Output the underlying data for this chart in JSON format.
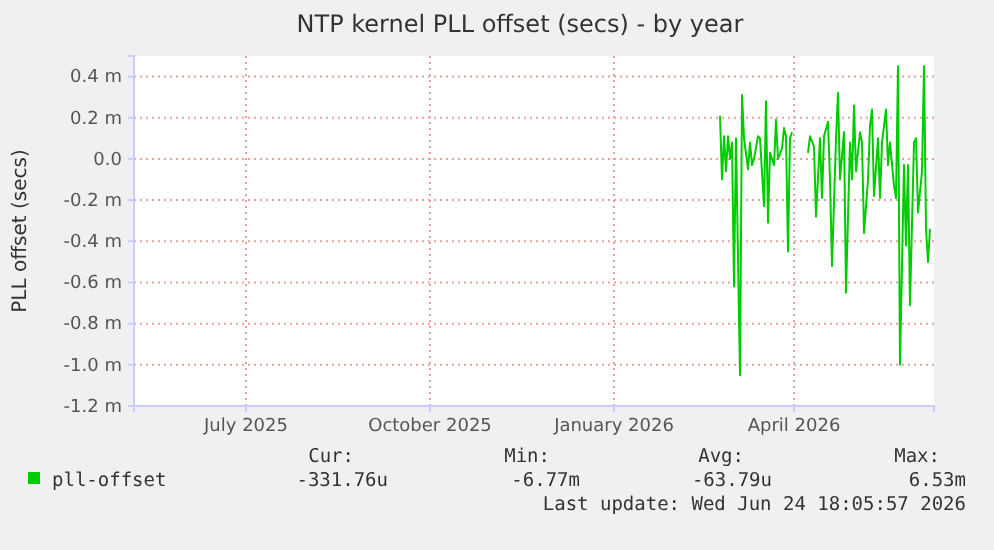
{
  "chart_data": {
    "type": "line",
    "title": "NTP kernel PLL offset (secs) - by year",
    "ylabel": "PLL offset (secs)",
    "xlim": [
      "2025-05-20",
      "2026-06-24"
    ],
    "xticks": [
      {
        "value": "2025-07-15",
        "label": "July 2025"
      },
      {
        "value": "2025-10-15",
        "label": "October 2025"
      },
      {
        "value": "2026-01-15",
        "label": "January 2026"
      },
      {
        "value": "2026-04-15",
        "label": "April 2026"
      }
    ],
    "ylim": [
      -1.2,
      0.5
    ],
    "yticks": [
      {
        "value": -1.2,
        "label": "-1.2 m"
      },
      {
        "value": -1,
        "label": "-1.0 m"
      },
      {
        "value": -0.8,
        "label": "-0.8 m"
      },
      {
        "value": -0.6,
        "label": "-0.6 m"
      },
      {
        "value": -0.4,
        "label": "-0.4 m"
      },
      {
        "value": -0.2,
        "label": "-0.2 m"
      },
      {
        "value": 0,
        "label": "0.0"
      },
      {
        "value": 0.2,
        "label": "0.2 m"
      },
      {
        "value": 0.4,
        "label": "0.4 m"
      }
    ],
    "grid": true,
    "legend": "bottom left",
    "marker": "none",
    "line_style": "solid",
    "x": [
      "2026-03-09",
      "2026-03-10",
      "2026-03-11",
      "2026-03-12",
      "2026-03-13",
      "2026-03-14",
      "2026-03-15",
      "2026-03-16",
      "2026-03-17",
      "2026-03-19",
      "2026-03-20",
      "2026-03-21",
      "2026-03-23",
      "2026-03-24",
      "2026-03-25",
      "2026-03-26",
      "2026-03-28",
      "2026-03-29",
      "2026-03-31",
      "2026-04-01",
      "2026-04-02",
      "2026-04-03",
      "2026-04-05",
      "2026-04-06",
      "2026-04-07",
      "2026-04-09",
      "2026-04-10",
      "2026-04-11",
      "2026-04-12",
      "2026-04-13",
      "2026-04-14",
      "2026-04-18",
      "2026-04-22",
      "2026-04-23",
      "2026-04-25",
      "2026-04-26",
      "2026-04-28",
      "2026-04-29",
      "2026-04-30",
      "2026-05-02",
      "2026-05-03",
      "2026-05-04",
      "2026-05-06",
      "2026-05-07",
      "2026-05-08",
      "2026-05-10",
      "2026-05-11",
      "2026-05-13",
      "2026-05-14",
      "2026-05-15",
      "2026-05-16",
      "2026-05-18",
      "2026-05-19",
      "2026-05-20",
      "2026-05-22",
      "2026-05-23",
      "2026-05-24",
      "2026-05-25",
      "2026-05-27",
      "2026-05-28",
      "2026-05-29",
      "2026-05-31",
      "2026-06-01",
      "2026-06-02",
      "2026-06-04",
      "2026-06-05",
      "2026-06-06",
      "2026-06-07",
      "2026-06-09",
      "2026-06-10",
      "2026-06-11",
      "2026-06-12",
      "2026-06-14",
      "2026-06-15",
      "2026-06-16",
      "2026-06-18",
      "2026-06-19",
      "2026-06-20",
      "2026-06-21",
      "2026-06-22"
    ],
    "series": [
      {
        "name": "pll-offset",
        "color": "#00cc00",
        "values": [
          0.21,
          -0.1,
          0.11,
          -0.06,
          0.11,
          0,
          0.08,
          -0.62,
          0.1,
          -1.05,
          0.31,
          0.1,
          -0.05,
          0.08,
          -0.03,
          0,
          0.11,
          0.1,
          -0.23,
          0.28,
          -0.31,
          0.03,
          -0.03,
          0.19,
          0,
          0.05,
          0.15,
          0.11,
          -0.45,
          0.1,
          0.13,
          null,
          0.03,
          0.11,
          0.06,
          -0.28,
          0.1,
          -0.19,
          0.11,
          0.18,
          -0.1,
          -0.52,
          0.1,
          0.32,
          -0.1,
          0.13,
          -0.65,
          0.08,
          -0.1,
          0.26,
          -0.06,
          0.13,
          0.08,
          -0.36,
          -0.1,
          0.16,
          0.24,
          -0.18,
          0.1,
          -0.19,
          0.08,
          0.24,
          -0.03,
          0.08,
          -0.13,
          -0.19,
          0.45,
          -1,
          -0.03,
          -0.42,
          -0.03,
          -0.71,
          0.08,
          0.1,
          -0.26,
          -0.06,
          0.45,
          -0.34,
          -0.5,
          -0.34
        ]
      }
    ],
    "annotations": [
      "Cur:",
      "Min:",
      "Avg:",
      "Max:",
      "-331.76u",
      "-6.77m",
      "-63.79u",
      "6.53m",
      "Last update: Wed Jun 24 18:05:57 2026"
    ]
  }
}
